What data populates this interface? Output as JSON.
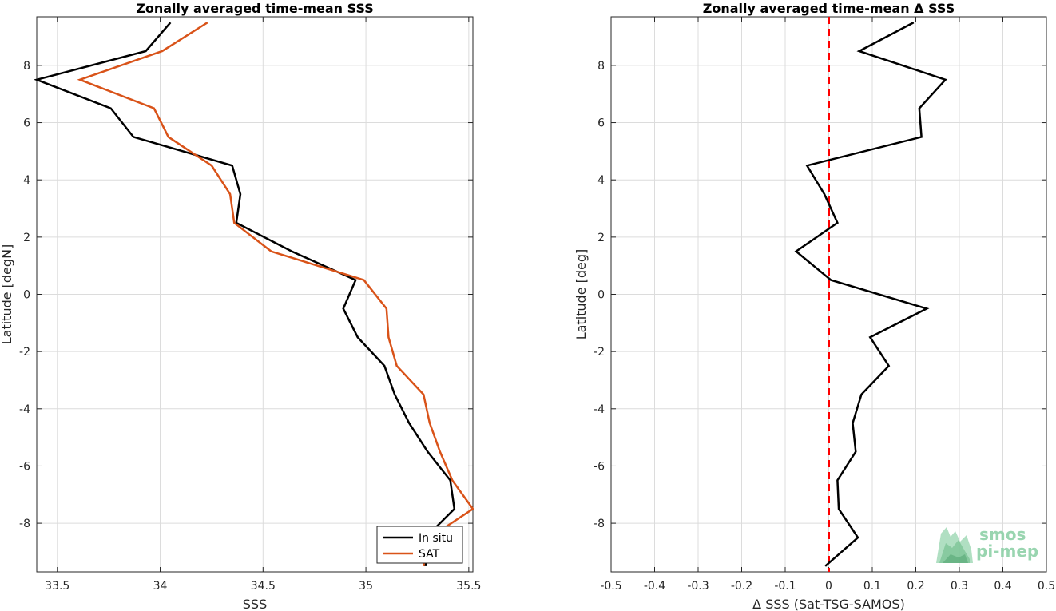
{
  "chart_data": [
    {
      "type": "line",
      "title": "Zonally averaged time-mean SSS",
      "xlabel": "SSS",
      "ylabel": "Latitude [degN]",
      "xlim": [
        33.4,
        35.52
      ],
      "ylim": [
        -9.7,
        9.7
      ],
      "x_ticks": [
        33.5,
        34,
        34.5,
        35,
        35.5
      ],
      "x_tick_labels": [
        "33.5",
        "34",
        "34.5",
        "35",
        "35.5"
      ],
      "y_ticks": [
        -8,
        -6,
        -4,
        -2,
        0,
        2,
        4,
        6,
        8
      ],
      "y_tick_labels": [
        "-8",
        "-6",
        "-4",
        "-2",
        "0",
        "2",
        "4",
        "6",
        "8"
      ],
      "grid": true,
      "legend": {
        "position": "bottom-right",
        "entries": [
          "In situ",
          "SAT"
        ]
      },
      "series": [
        {
          "name": "In situ",
          "color": "#000000",
          "points": [
            {
              "x": 34.05,
              "y": 9.5
            },
            {
              "x": 33.93,
              "y": 8.5
            },
            {
              "x": 33.4,
              "y": 7.5
            },
            {
              "x": 33.76,
              "y": 6.5
            },
            {
              "x": 33.87,
              "y": 5.5
            },
            {
              "x": 34.35,
              "y": 4.5
            },
            {
              "x": 34.39,
              "y": 3.5
            },
            {
              "x": 34.37,
              "y": 2.5
            },
            {
              "x": 34.64,
              "y": 1.5
            },
            {
              "x": 34.95,
              "y": 0.5
            },
            {
              "x": 34.89,
              "y": -0.5
            },
            {
              "x": 34.96,
              "y": -1.5
            },
            {
              "x": 35.09,
              "y": -2.5
            },
            {
              "x": 35.14,
              "y": -3.5
            },
            {
              "x": 35.21,
              "y": -4.5
            },
            {
              "x": 35.3,
              "y": -5.5
            },
            {
              "x": 35.41,
              "y": -6.5
            },
            {
              "x": 35.43,
              "y": -7.5
            },
            {
              "x": 35.29,
              "y": -8.5
            },
            {
              "x": 35.29,
              "y": -9.5
            }
          ]
        },
        {
          "name": "SAT",
          "color": "#d95319",
          "points": [
            {
              "x": 34.23,
              "y": 9.5
            },
            {
              "x": 34.01,
              "y": 8.5
            },
            {
              "x": 33.61,
              "y": 7.5
            },
            {
              "x": 33.97,
              "y": 6.5
            },
            {
              "x": 34.04,
              "y": 5.5
            },
            {
              "x": 34.25,
              "y": 4.5
            },
            {
              "x": 34.34,
              "y": 3.5
            },
            {
              "x": 34.36,
              "y": 2.5
            },
            {
              "x": 34.54,
              "y": 1.5
            },
            {
              "x": 34.99,
              "y": 0.5
            },
            {
              "x": 35.1,
              "y": -0.5
            },
            {
              "x": 35.11,
              "y": -1.5
            },
            {
              "x": 35.15,
              "y": -2.5
            },
            {
              "x": 35.28,
              "y": -3.5
            },
            {
              "x": 35.31,
              "y": -4.5
            },
            {
              "x": 35.36,
              "y": -5.5
            },
            {
              "x": 35.42,
              "y": -6.5
            },
            {
              "x": 35.52,
              "y": -7.5
            },
            {
              "x": 35.31,
              "y": -8.5
            },
            {
              "x": 35.28,
              "y": -9.5
            }
          ]
        }
      ]
    },
    {
      "type": "line",
      "title": "Zonally averaged time-mean Δ SSS",
      "xlabel": "Δ SSS (Sat-TSG-SAMOS)",
      "ylabel": "Latitude [deg]",
      "xlim": [
        -0.5,
        0.5
      ],
      "ylim": [
        -9.7,
        9.7
      ],
      "x_ticks": [
        -0.5,
        -0.4,
        -0.3,
        -0.2,
        -0.1,
        0,
        0.1,
        0.2,
        0.3,
        0.4,
        0.5
      ],
      "x_tick_labels": [
        "-0.5",
        "-0.4",
        "-0.3",
        "-0.2",
        "-0.1",
        "0",
        "0.1",
        "0.2",
        "0.3",
        "0.4",
        "0.5"
      ],
      "y_ticks": [
        -8,
        -6,
        -4,
        -2,
        0,
        2,
        4,
        6,
        8
      ],
      "y_tick_labels": [
        "-8",
        "-6",
        "-4",
        "-2",
        "0",
        "2",
        "4",
        "6",
        "8"
      ],
      "grid": true,
      "reference_line": {
        "x": 0,
        "color": "#ff0000",
        "style": "dashed"
      },
      "series": [
        {
          "color": "#000000",
          "points": [
            {
              "x": 0.195,
              "y": 9.5
            },
            {
              "x": 0.07,
              "y": 8.5
            },
            {
              "x": 0.268,
              "y": 7.5
            },
            {
              "x": 0.208,
              "y": 6.5
            },
            {
              "x": 0.213,
              "y": 5.5
            },
            {
              "x": -0.05,
              "y": 4.5
            },
            {
              "x": -0.01,
              "y": 3.5
            },
            {
              "x": 0.02,
              "y": 2.5
            },
            {
              "x": -0.075,
              "y": 1.5
            },
            {
              "x": 0.005,
              "y": 0.5
            },
            {
              "x": 0.225,
              "y": -0.5
            },
            {
              "x": 0.095,
              "y": -1.5
            },
            {
              "x": 0.138,
              "y": -2.5
            },
            {
              "x": 0.075,
              "y": -3.5
            },
            {
              "x": 0.055,
              "y": -4.5
            },
            {
              "x": 0.062,
              "y": -5.5
            },
            {
              "x": 0.02,
              "y": -6.5
            },
            {
              "x": 0.023,
              "y": -7.5
            },
            {
              "x": 0.067,
              "y": -8.5
            },
            {
              "x": -0.008,
              "y": -9.5
            }
          ]
        }
      ]
    }
  ],
  "logo": {
    "line1": "smos",
    "line2": "pi-mep",
    "color": "#8fd1a8"
  }
}
